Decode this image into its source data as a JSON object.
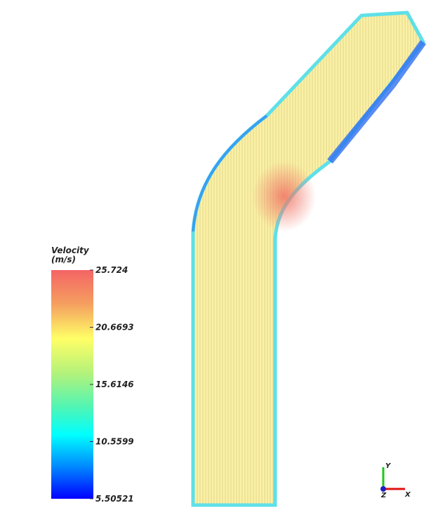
{
  "colorbar": {
    "title": [
      "Velocity",
      "(m/s)"
    ],
    "range": [
      5.50521,
      25.724
    ],
    "ticks": [
      25.724,
      20.6693,
      15.6146,
      10.5599,
      5.50521
    ]
  },
  "axes": {
    "y": "Y",
    "z": "Z",
    "x": "X"
  }
}
